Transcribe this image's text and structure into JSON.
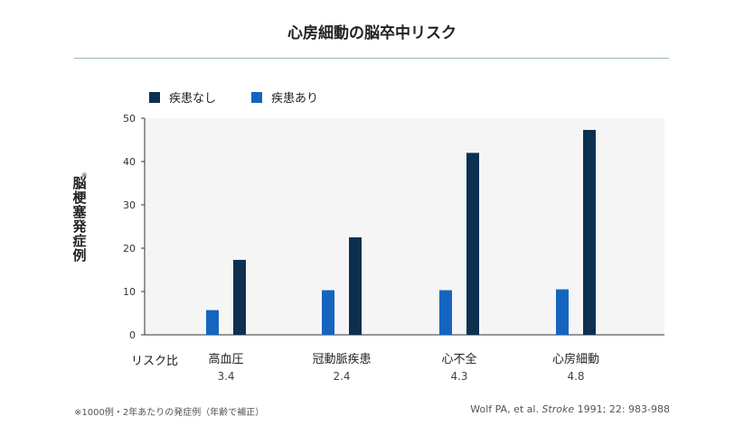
{
  "title": "心房細動の脳卒中リスク",
  "legend": [
    {
      "label": "疾患なし",
      "color": "#0d3050"
    },
    {
      "label": "疾患あり",
      "color": "#1565c0"
    }
  ],
  "y_title": "脳梗塞発症例",
  "y_title_note": "※",
  "risk_label": "リスク比",
  "footnote": "※1000例・2年あたりの発症例（年齢で補正）",
  "citation": {
    "authors": "Wolf PA, et al.",
    "journal": "Stroke",
    "details": "1991; 22: 983-988"
  },
  "chart_data": {
    "type": "bar",
    "title": "心房細動の脳卒中リスク",
    "ylabel": "脳梗塞発症例",
    "ylim": [
      0,
      50
    ],
    "yticks": [
      0,
      10,
      20,
      30,
      40,
      50
    ],
    "categories": [
      "高血圧",
      "冠動脈疾患",
      "心不全",
      "心房細動"
    ],
    "risk_ratio_label": "リスク比",
    "risk_ratios": [
      "3.4",
      "2.4",
      "4.3",
      "4.8"
    ],
    "series": [
      {
        "name": "疾患あり",
        "color": "#1565c0",
        "values": [
          5.7,
          10.3,
          10.3,
          10.5
        ]
      },
      {
        "name": "疾患なし",
        "color": "#0d3050",
        "values": [
          17.3,
          22.5,
          42.0,
          47.3
        ]
      }
    ],
    "grid": false,
    "legend_position": "top-left"
  }
}
